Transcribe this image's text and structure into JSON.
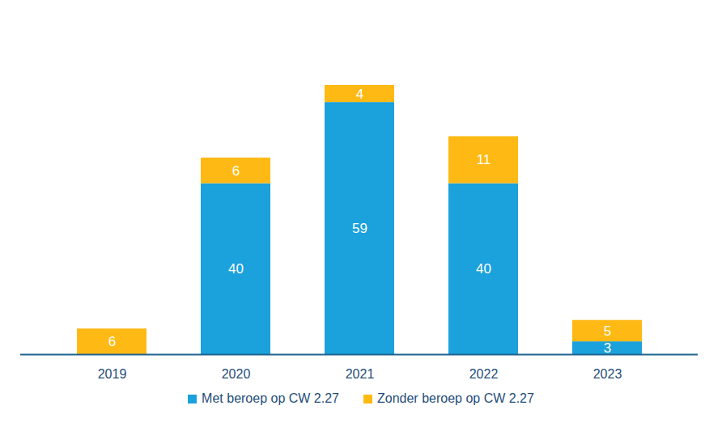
{
  "chart_data": {
    "type": "bar",
    "categories": [
      "2019",
      "2020",
      "2021",
      "2022",
      "2023"
    ],
    "series": [
      {
        "name": "Met beroep op CW 2.27",
        "color": "#1ba1db",
        "values": [
          null,
          40,
          59,
          40,
          3
        ]
      },
      {
        "name": "Zonder beroep op CW 2.27",
        "color": "#ffb914",
        "values": [
          6,
          6,
          4,
          11,
          5
        ]
      }
    ],
    "stacked": true,
    "data_labels": true,
    "ylim": [
      0,
      70
    ],
    "tick_labels": "x",
    "legend": "bottom",
    "grid": false
  }
}
